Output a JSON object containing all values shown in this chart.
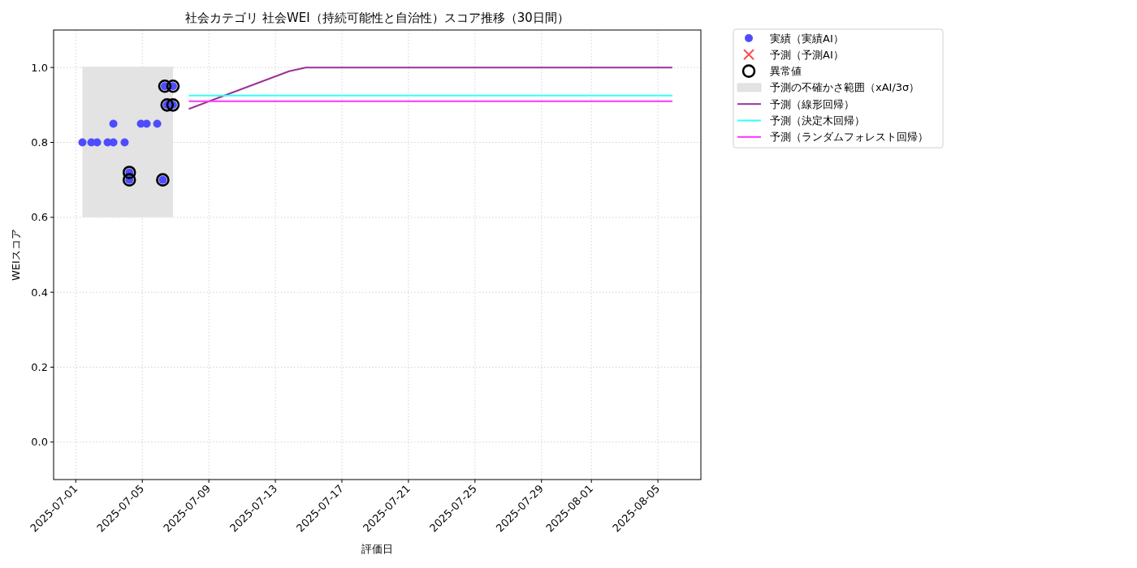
{
  "chart_data": {
    "type": "scatter",
    "title": "社会カテゴリ 社会WEI（持続可能性と自治性）スコア推移（30日間）",
    "xlabel": "評価日",
    "ylabel": "WEIスコア",
    "xlim": [
      "2025-06-29T16:00",
      "2025-08-07T14:00"
    ],
    "xticks": [
      "2025-07-01",
      "2025-07-05",
      "2025-07-09",
      "2025-07-13",
      "2025-07-17",
      "2025-07-21",
      "2025-07-25",
      "2025-07-29",
      "2025-08-01",
      "2025-08-05"
    ],
    "ylim": [
      -0.1,
      1.1
    ],
    "yticks": [
      {
        "value": 0,
        "label": "0.0"
      },
      {
        "value": 0.2,
        "label": "0.2"
      },
      {
        "value": 0.4,
        "label": "0.4"
      },
      {
        "value": 0.6,
        "label": "0.6"
      },
      {
        "value": 0.8,
        "label": "0.8"
      },
      {
        "value": 1,
        "label": "1.0"
      }
    ],
    "grid": true,
    "legend": "right",
    "series": [
      {
        "name": "実績（実績AI）",
        "marker": "circle",
        "color": "#4d4dff",
        "x": [
          "2025-07-01T09:36",
          "2025-07-01T22:30",
          "2025-07-02T06:45",
          "2025-07-02T22:00",
          "2025-07-03T06:15",
          "2025-07-03T06:15",
          "2025-07-03T22:30",
          "2025-07-04T05:15",
          "2025-07-04T05:15",
          "2025-07-04T22:00",
          "2025-07-05T06:15",
          "2025-07-05T21:30",
          "2025-07-06T05:30",
          "2025-07-06T08:30",
          "2025-07-06T11:45",
          "2025-07-06T20:15",
          "2025-07-06T20:15"
        ],
        "values": [
          0.8,
          0.8,
          0.8,
          0.8,
          0.8,
          0.85,
          0.8,
          0.72,
          0.7,
          0.85,
          0.85,
          0.85,
          0.7,
          0.95,
          0.9,
          0.95,
          0.9
        ]
      },
      {
        "name": "予測（予測AI）",
        "marker": "cross",
        "color": "#ff4d4d"
      },
      {
        "name": "異常値",
        "color": "#000000",
        "x": [
          "2025-07-04T05:15",
          "2025-07-04T05:15",
          "2025-07-06T05:30",
          "2025-07-06T08:30",
          "2025-07-06T11:45",
          "2025-07-06T20:15",
          "2025-07-06T20:15"
        ],
        "values": [
          0.72,
          0.7,
          0.7,
          0.95,
          0.9,
          0.95,
          0.9
        ]
      },
      {
        "name": "予測の不確かさ範囲（xAI/3σ）",
        "type": "line",
        "color": "#e3e3e3",
        "x": [
          "2025-07-01T09:36",
          "2025-07-06T20:15"
        ],
        "values": [
          1.0,
          1.0
        ],
        "lower": [
          0.6,
          0.6
        ],
        "upper": [
          1.0,
          1.0
        ]
      },
      {
        "name": "予測（線形回帰）",
        "type": "line",
        "color": "#993399",
        "x": [
          "2025-07-07T20:00",
          "2025-07-13T20:00",
          "2025-07-14T20:00",
          "2025-08-05T20:00"
        ],
        "values": [
          0.89,
          0.99,
          1.0,
          1.0
        ]
      },
      {
        "name": "予測（決定木回帰）",
        "type": "line",
        "color": "#33ffff",
        "x": [
          "2025-07-07T20:00",
          "2025-08-05T20:00"
        ],
        "values": [
          0.925,
          0.925
        ]
      },
      {
        "name": "予測（ランダムフォレスト回帰）",
        "type": "line",
        "color": "#ff33ff",
        "x": [
          "2025-07-07T20:00",
          "2025-08-05T20:00"
        ],
        "values": [
          0.91,
          0.91
        ]
      }
    ]
  }
}
